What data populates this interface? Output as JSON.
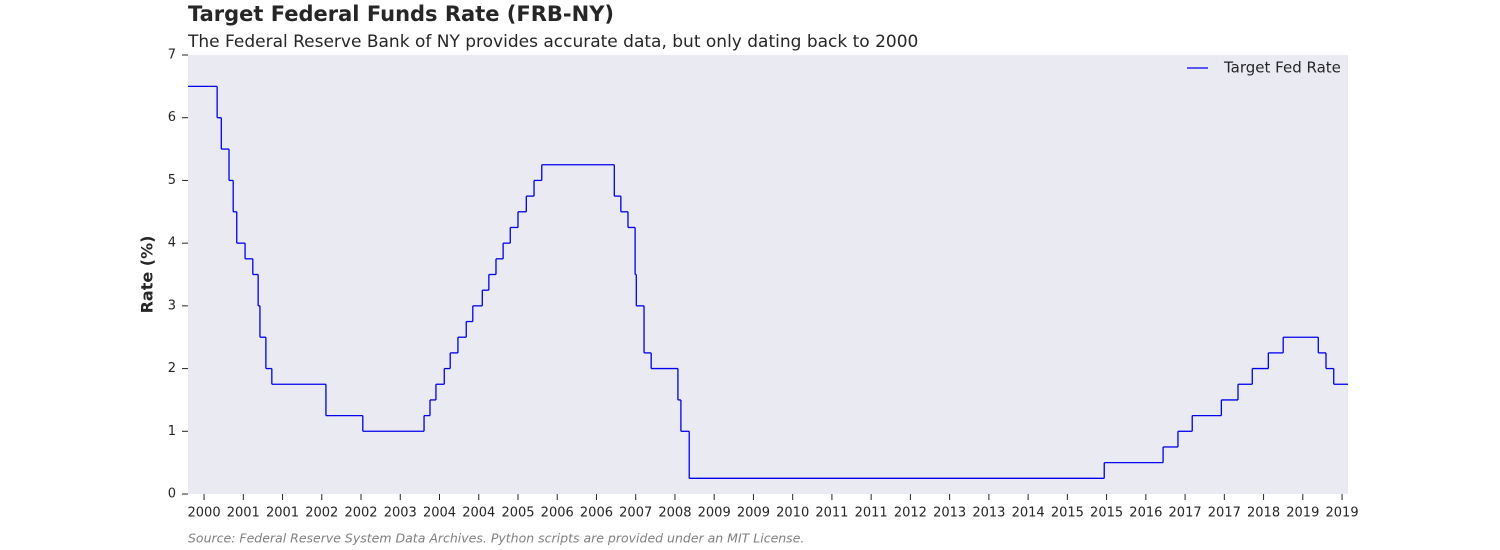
{
  "chart_data": {
    "type": "step",
    "title": "Target Federal Funds Rate (FRB-NY)",
    "subtitle": "The Federal Reserve Bank of NY provides accurate data, but only dating back to 2000",
    "y_label": "Rate (%)",
    "source": "Source: Federal Reserve System Data Archives. Python scripts are provided under an MIT License.",
    "x": [
      2000.0,
      2000.49,
      2000.56,
      2000.69,
      2000.76,
      2000.82,
      2000.96,
      2001.09,
      2001.18,
      2001.21,
      2001.31,
      2001.41,
      2002.32,
      2002.94,
      2003.97,
      2004.07,
      2004.17,
      2004.31,
      2004.41,
      2004.54,
      2004.68,
      2004.79,
      2004.95,
      2005.06,
      2005.18,
      2005.3,
      2005.42,
      2005.55,
      2005.69,
      2005.82,
      2005.95,
      2007.17,
      2007.28,
      2007.4,
      2007.52,
      2007.54,
      2007.67,
      2007.79,
      2008.24,
      2008.29,
      2008.43,
      2015.41,
      2016.4,
      2016.65,
      2016.89,
      2017.38,
      2017.66,
      2017.9,
      2018.17,
      2018.42,
      2019.01,
      2019.14,
      2019.27,
      2019.51
    ],
    "series": [
      {
        "name": "Target Fed Rate",
        "color": "#0000ee",
        "values": [
          6.5,
          6.0,
          5.5,
          5.0,
          4.5,
          4.0,
          3.75,
          3.5,
          3.0,
          2.5,
          2.0,
          1.75,
          1.25,
          1.0,
          1.25,
          1.5,
          1.75,
          2.0,
          2.25,
          2.5,
          2.75,
          3.0,
          3.25,
          3.5,
          3.75,
          4.0,
          4.25,
          4.5,
          4.75,
          5.0,
          5.25,
          4.75,
          4.5,
          4.25,
          3.5,
          3.0,
          2.25,
          2.0,
          1.5,
          1.0,
          0.25,
          0.5,
          0.75,
          1.0,
          1.25,
          1.5,
          1.75,
          2.0,
          2.25,
          2.5,
          2.25,
          2.0,
          1.75,
          1.75
        ]
      }
    ],
    "xlim": [
      2000.0,
      2019.51
    ],
    "xticks": [
      {
        "value": 2000.27,
        "label": "2000"
      },
      {
        "value": 2000.93,
        "label": "2001"
      },
      {
        "value": 2001.59,
        "label": "2001"
      },
      {
        "value": 2002.25,
        "label": "2002"
      },
      {
        "value": 2002.91,
        "label": "2002"
      },
      {
        "value": 2003.57,
        "label": "2003"
      },
      {
        "value": 2004.23,
        "label": "2004"
      },
      {
        "value": 2004.89,
        "label": "2004"
      },
      {
        "value": 2005.55,
        "label": "2005"
      },
      {
        "value": 2006.21,
        "label": "2006"
      },
      {
        "value": 2006.87,
        "label": "2006"
      },
      {
        "value": 2007.53,
        "label": "2007"
      },
      {
        "value": 2008.19,
        "label": "2008"
      },
      {
        "value": 2008.85,
        "label": "2009"
      },
      {
        "value": 2009.51,
        "label": "2009"
      },
      {
        "value": 2010.17,
        "label": "2010"
      },
      {
        "value": 2010.83,
        "label": "2011"
      },
      {
        "value": 2011.49,
        "label": "2011"
      },
      {
        "value": 2012.15,
        "label": "2012"
      },
      {
        "value": 2012.81,
        "label": "2013"
      },
      {
        "value": 2013.47,
        "label": "2013"
      },
      {
        "value": 2014.13,
        "label": "2014"
      },
      {
        "value": 2014.79,
        "label": "2015"
      },
      {
        "value": 2015.45,
        "label": "2015"
      },
      {
        "value": 2016.11,
        "label": "2016"
      },
      {
        "value": 2016.77,
        "label": "2017"
      },
      {
        "value": 2017.43,
        "label": "2017"
      },
      {
        "value": 2018.09,
        "label": "2018"
      },
      {
        "value": 2018.75,
        "label": "2019"
      },
      {
        "value": 2019.41,
        "label": "2019"
      }
    ],
    "ylim": [
      0,
      7
    ],
    "yticks": [
      0,
      1,
      2,
      3,
      4,
      5,
      6,
      7
    ],
    "legend": "upper right",
    "background": "#eaeaf2",
    "grid": false
  }
}
